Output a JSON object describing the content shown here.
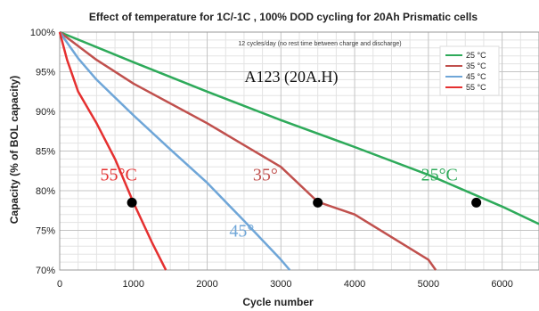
{
  "chart_data": {
    "type": "line",
    "title": "Effect of temperature for 1C/-1C , 100% DOD cycling for 20Ah Prismatic cells",
    "xlabel": "Cycle number",
    "ylabel": "Capacity (% of BOL capacity)",
    "xlim": [
      0,
      6500
    ],
    "ylim": [
      70,
      100
    ],
    "xticks": [
      0,
      1000,
      2000,
      3000,
      4000,
      5000,
      6000
    ],
    "yticks": [
      70,
      75,
      80,
      85,
      90,
      95,
      100
    ],
    "ytick_suffix": "%",
    "grid": true,
    "legend_position": "top-right",
    "subtitle_note": "12 cycles/day (no rest time between charge and discharge)",
    "cell_label": "A123  (20A.H)",
    "series": [
      {
        "name": "25 °C",
        "color": "#2eaa5a",
        "annotation": "25°C",
        "annotation_at": [
          4900,
          81.3
        ],
        "x": [
          0,
          1000,
          2000,
          3000,
          4000,
          5000,
          6000,
          6500
        ],
        "y": [
          100,
          96.2,
          92.5,
          88.9,
          85.5,
          82.0,
          78.0,
          75.8
        ]
      },
      {
        "name": "35 °C",
        "color": "#c0504d",
        "annotation": "35°",
        "annotation_at": [
          2620,
          81.3
        ],
        "x": [
          0,
          500,
          1000,
          2000,
          3000,
          3500,
          4000,
          5000,
          5100
        ],
        "y": [
          100,
          96.5,
          93.5,
          88.5,
          83.0,
          78.6,
          77.0,
          71.3,
          70.0
        ]
      },
      {
        "name": "45 °C",
        "color": "#6fa6d8",
        "annotation": "45°",
        "annotation_at": [
          2300,
          74.2
        ],
        "x": [
          0,
          250,
          500,
          1000,
          1500,
          2000,
          2500,
          3000,
          3120
        ],
        "y": [
          100,
          96.7,
          94.0,
          89.5,
          85.2,
          81.0,
          76.2,
          71.3,
          70.0
        ]
      },
      {
        "name": "55 °C",
        "color": "#e53030",
        "annotation": "55°C",
        "annotation_at": [
          550,
          81.3
        ],
        "x": [
          0,
          100,
          250,
          500,
          750,
          1000,
          1250,
          1440
        ],
        "y": [
          100,
          96.5,
          92.5,
          88.5,
          84.0,
          78.5,
          73.5,
          70.0
        ]
      }
    ],
    "markers": [
      {
        "x": 980,
        "y": 78.5
      },
      {
        "x": 3500,
        "y": 78.5
      },
      {
        "x": 5650,
        "y": 78.5
      }
    ]
  }
}
